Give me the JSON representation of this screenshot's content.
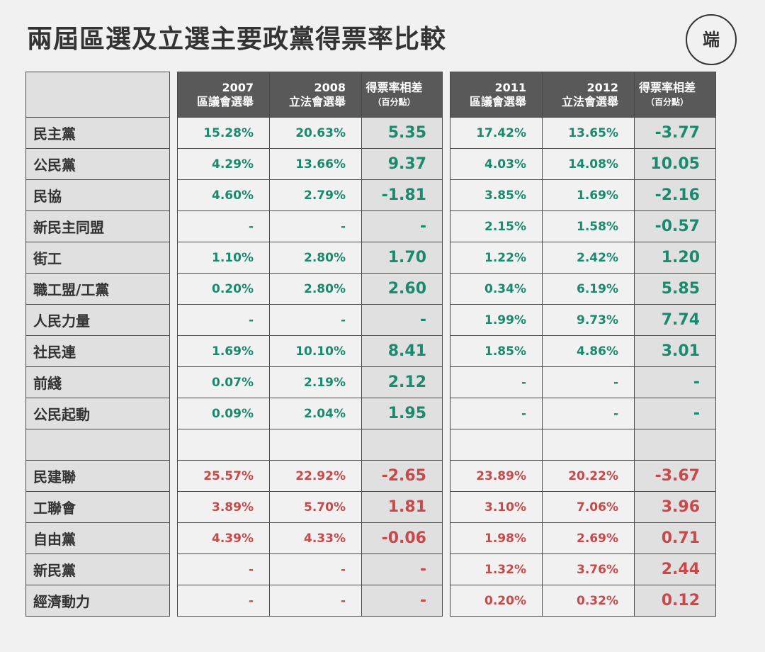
{
  "title": "兩屆區選及立選主要政黨得票率比較",
  "logo_text": "端",
  "header": {
    "group1": [
      {
        "year": "2007",
        "label": "區議會選舉"
      },
      {
        "year": "2008",
        "label": "立法會選舉"
      },
      {
        "year": "得票率相差",
        "label": "（百分點）"
      }
    ],
    "group2": [
      {
        "year": "2011",
        "label": "區議會選舉"
      },
      {
        "year": "2012",
        "label": "立法會選舉"
      },
      {
        "year": "得票率相差",
        "label": "（百分點）"
      }
    ]
  },
  "colors": {
    "pan_democrat": "#1a8a6e",
    "pro_establishment": "#c9484a"
  },
  "rows": [
    {
      "party": "民主黨",
      "v2007": "15.28%",
      "v2008": "20.63%",
      "d1": "5.35",
      "v2011": "17.42%",
      "v2012": "13.65%",
      "d2": "-3.77"
    },
    {
      "party": "公民黨",
      "v2007": "4.29%",
      "v2008": "13.66%",
      "d1": "9.37",
      "v2011": "4.03%",
      "v2012": "14.08%",
      "d2": "10.05"
    },
    {
      "party": "民協",
      "v2007": "4.60%",
      "v2008": "2.79%",
      "d1": "-1.81",
      "v2011": "3.85%",
      "v2012": "1.69%",
      "d2": "-2.16"
    },
    {
      "party": "新民主同盟",
      "v2007": "-",
      "v2008": "-",
      "d1": "-",
      "v2011": "2.15%",
      "v2012": "1.58%",
      "d2": "-0.57"
    },
    {
      "party": "街工",
      "v2007": "1.10%",
      "v2008": "2.80%",
      "d1": "1.70",
      "v2011": "1.22%",
      "v2012": "2.42%",
      "d2": "1.20"
    },
    {
      "party": "職工盟/工黨",
      "v2007": "0.20%",
      "v2008": "2.80%",
      "d1": "2.60",
      "v2011": "0.34%",
      "v2012": "6.19%",
      "d2": "5.85"
    },
    {
      "party": "人民力量",
      "v2007": "-",
      "v2008": "-",
      "d1": "-",
      "v2011": "1.99%",
      "v2012": "9.73%",
      "d2": "7.74"
    },
    {
      "party": "社民連",
      "v2007": "1.69%",
      "v2008": "10.10%",
      "d1": "8.41",
      "v2011": "1.85%",
      "v2012": "4.86%",
      "d2": "3.01"
    },
    {
      "party": "前綫",
      "v2007": "0.07%",
      "v2008": "2.19%",
      "d1": "2.12",
      "v2011": "-",
      "v2012": "-",
      "d2": "-"
    },
    {
      "party": "公民起動",
      "v2007": "0.09%",
      "v2008": "2.04%",
      "d1": "1.95",
      "v2011": "-",
      "v2012": "-",
      "d2": "-"
    },
    {
      "party": "民建聯",
      "v2007": "25.57%",
      "v2008": "22.92%",
      "d1": "-2.65",
      "v2011": "23.89%",
      "v2012": "20.22%",
      "d2": "-3.67"
    },
    {
      "party": "工聯會",
      "v2007": "3.89%",
      "v2008": "5.70%",
      "d1": "1.81",
      "v2011": "3.10%",
      "v2012": "7.06%",
      "d2": "3.96"
    },
    {
      "party": "自由黨",
      "v2007": "4.39%",
      "v2008": "4.33%",
      "d1": "-0.06",
      "v2011": "1.98%",
      "v2012": "2.69%",
      "d2": "0.71"
    },
    {
      "party": "新民黨",
      "v2007": "-",
      "v2008": "-",
      "d1": "-",
      "v2011": "1.32%",
      "v2012": "3.76%",
      "d2": "2.44"
    },
    {
      "party": "經濟動力",
      "v2007": "-",
      "v2008": "-",
      "d1": "-",
      "v2011": "0.20%",
      "v2012": "0.32%",
      "d2": "0.12"
    }
  ]
}
